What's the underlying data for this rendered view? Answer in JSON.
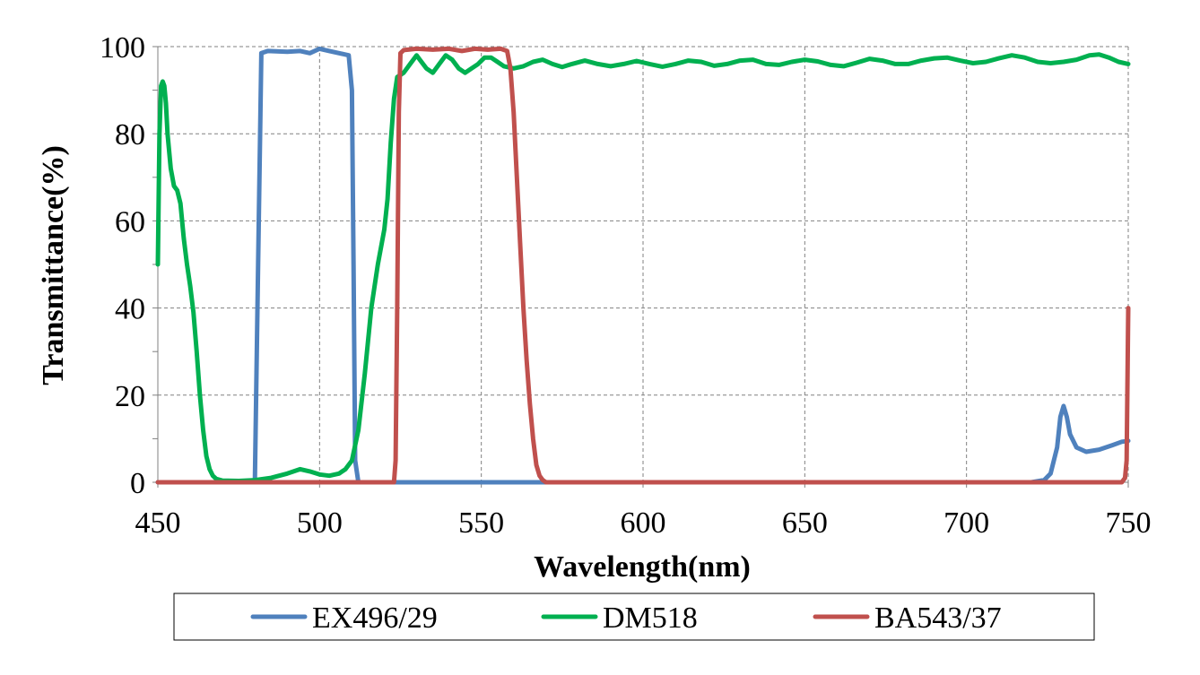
{
  "chart_data": {
    "type": "line",
    "title": "",
    "xlabel": "Wavelength(nm)",
    "ylabel": "Transmittance(%)",
    "xlim": [
      450,
      750
    ],
    "ylim": [
      0,
      100
    ],
    "x_ticks": [
      450,
      500,
      550,
      600,
      650,
      700,
      750
    ],
    "y_ticks": [
      0,
      20,
      40,
      60,
      80,
      100
    ],
    "grid": true,
    "legend_position": "bottom",
    "series": [
      {
        "name": "EX496/29",
        "color": "#4F81BD",
        "points": [
          [
            450,
            0
          ],
          [
            479,
            0
          ],
          [
            480,
            0.5
          ],
          [
            481,
            50
          ],
          [
            482,
            98.5
          ],
          [
            484,
            99
          ],
          [
            490,
            98.8
          ],
          [
            494,
            99
          ],
          [
            497,
            98.5
          ],
          [
            500,
            99.5
          ],
          [
            503,
            99
          ],
          [
            506,
            98.5
          ],
          [
            509,
            98
          ],
          [
            510,
            90
          ],
          [
            510.5,
            50
          ],
          [
            511,
            5
          ],
          [
            512,
            0
          ],
          [
            720,
            0
          ],
          [
            724,
            0.5
          ],
          [
            726,
            2
          ],
          [
            728,
            8
          ],
          [
            729,
            15
          ],
          [
            730,
            17.5
          ],
          [
            731,
            15
          ],
          [
            732,
            11
          ],
          [
            734,
            8
          ],
          [
            737,
            7
          ],
          [
            741,
            7.5
          ],
          [
            745,
            8.5
          ],
          [
            748,
            9.3
          ],
          [
            750,
            9.5
          ]
        ]
      },
      {
        "name": "DM518",
        "color": "#00B050",
        "points": [
          [
            450,
            50
          ],
          [
            450.5,
            80
          ],
          [
            451,
            91
          ],
          [
            451.5,
            92
          ],
          [
            452,
            91
          ],
          [
            452.5,
            87
          ],
          [
            453,
            80
          ],
          [
            454,
            72
          ],
          [
            455,
            68
          ],
          [
            456,
            67
          ],
          [
            457,
            64
          ],
          [
            458,
            56
          ],
          [
            459,
            50
          ],
          [
            460,
            45
          ],
          [
            461,
            39
          ],
          [
            462,
            30
          ],
          [
            463,
            20
          ],
          [
            464,
            12
          ],
          [
            465,
            6
          ],
          [
            466,
            3
          ],
          [
            467,
            1.5
          ],
          [
            468,
            0.8
          ],
          [
            470,
            0.4
          ],
          [
            475,
            0.3
          ],
          [
            480,
            0.5
          ],
          [
            485,
            1
          ],
          [
            490,
            2
          ],
          [
            494,
            3
          ],
          [
            497,
            2.5
          ],
          [
            500,
            1.8
          ],
          [
            503,
            1.5
          ],
          [
            506,
            2
          ],
          [
            508,
            3
          ],
          [
            510,
            5
          ],
          [
            512,
            12
          ],
          [
            514,
            25
          ],
          [
            516,
            40
          ],
          [
            518,
            50
          ],
          [
            520,
            58
          ],
          [
            521,
            65
          ],
          [
            522,
            78
          ],
          [
            523,
            88
          ],
          [
            524,
            93
          ],
          [
            526,
            94
          ],
          [
            528,
            96
          ],
          [
            530,
            98
          ],
          [
            531,
            97
          ],
          [
            533,
            95
          ],
          [
            535,
            94
          ],
          [
            537,
            96
          ],
          [
            539,
            98
          ],
          [
            541,
            97
          ],
          [
            543,
            95
          ],
          [
            545,
            94
          ],
          [
            547,
            95
          ],
          [
            549,
            96
          ],
          [
            551,
            97.5
          ],
          [
            553,
            97.5
          ],
          [
            555,
            96.5
          ],
          [
            557,
            95.5
          ],
          [
            560,
            95
          ],
          [
            563,
            95.5
          ],
          [
            566,
            96.5
          ],
          [
            569,
            97
          ],
          [
            572,
            96
          ],
          [
            575,
            95.3
          ],
          [
            578,
            96
          ],
          [
            582,
            96.8
          ],
          [
            586,
            96
          ],
          [
            590,
            95.5
          ],
          [
            594,
            96
          ],
          [
            598,
            96.7
          ],
          [
            602,
            96
          ],
          [
            606,
            95.4
          ],
          [
            610,
            96
          ],
          [
            614,
            96.8
          ],
          [
            618,
            96.5
          ],
          [
            622,
            95.6
          ],
          [
            626,
            96
          ],
          [
            630,
            96.8
          ],
          [
            634,
            97
          ],
          [
            638,
            96
          ],
          [
            642,
            95.8
          ],
          [
            646,
            96.5
          ],
          [
            650,
            97
          ],
          [
            654,
            96.6
          ],
          [
            658,
            95.8
          ],
          [
            662,
            95.5
          ],
          [
            666,
            96.3
          ],
          [
            670,
            97.2
          ],
          [
            674,
            96.8
          ],
          [
            678,
            96
          ],
          [
            682,
            96
          ],
          [
            686,
            96.8
          ],
          [
            690,
            97.3
          ],
          [
            694,
            97.5
          ],
          [
            698,
            96.8
          ],
          [
            702,
            96.2
          ],
          [
            706,
            96.5
          ],
          [
            710,
            97.3
          ],
          [
            714,
            98
          ],
          [
            718,
            97.5
          ],
          [
            722,
            96.5
          ],
          [
            726,
            96.2
          ],
          [
            730,
            96.5
          ],
          [
            734,
            97
          ],
          [
            738,
            98
          ],
          [
            741,
            98.2
          ],
          [
            744,
            97.5
          ],
          [
            747,
            96.5
          ],
          [
            750,
            96
          ]
        ]
      },
      {
        "name": "BA543/37",
        "color": "#C0504D",
        "points": [
          [
            450,
            0
          ],
          [
            523,
            0
          ],
          [
            523.5,
            5
          ],
          [
            524,
            40
          ],
          [
            524.5,
            85
          ],
          [
            525,
            98.5
          ],
          [
            526,
            99.2
          ],
          [
            530,
            99.5
          ],
          [
            535,
            99.3
          ],
          [
            540,
            99.5
          ],
          [
            544,
            99
          ],
          [
            548,
            99.5
          ],
          [
            552,
            99.3
          ],
          [
            556,
            99.5
          ],
          [
            558,
            99
          ],
          [
            559,
            95
          ],
          [
            560,
            85
          ],
          [
            561,
            70
          ],
          [
            562,
            55
          ],
          [
            563,
            40
          ],
          [
            564,
            28
          ],
          [
            565,
            18
          ],
          [
            566,
            10
          ],
          [
            567,
            4
          ],
          [
            568,
            1.5
          ],
          [
            569,
            0.5
          ],
          [
            570,
            0
          ],
          [
            748,
            0
          ],
          [
            749,
            1
          ],
          [
            749.5,
            5
          ],
          [
            750,
            40
          ]
        ]
      }
    ]
  }
}
